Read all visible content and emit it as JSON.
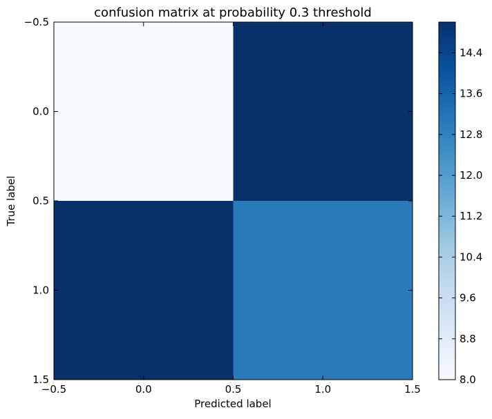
{
  "chart_data": {
    "type": "heatmap",
    "title": "confusion matrix at probability 0.3 threshold",
    "xlabel": "Predicted label",
    "ylabel": "True label",
    "rows": [
      0,
      1
    ],
    "cols": [
      0,
      1
    ],
    "values": [
      [
        8,
        15
      ],
      [
        15,
        13
      ]
    ],
    "xlim": [
      -0.5,
      1.5
    ],
    "ylim": [
      1.5,
      -0.5
    ],
    "x_ticks": [
      "−0.5",
      "0.0",
      "0.5",
      "1.0",
      "1.5"
    ],
    "y_ticks": [
      "−0.5",
      "0.0",
      "0.5",
      "1.0",
      "1.5"
    ],
    "colorbar": {
      "vmin": 8.0,
      "vmax": 15.0,
      "ticks": [
        "8.0",
        "8.8",
        "9.6",
        "10.4",
        "11.2",
        "12.0",
        "12.8",
        "13.6",
        "14.4"
      ]
    },
    "colormap": "Blues",
    "colors": {
      "low": "#f7fbff",
      "high": "#08306b"
    },
    "grid": false
  }
}
